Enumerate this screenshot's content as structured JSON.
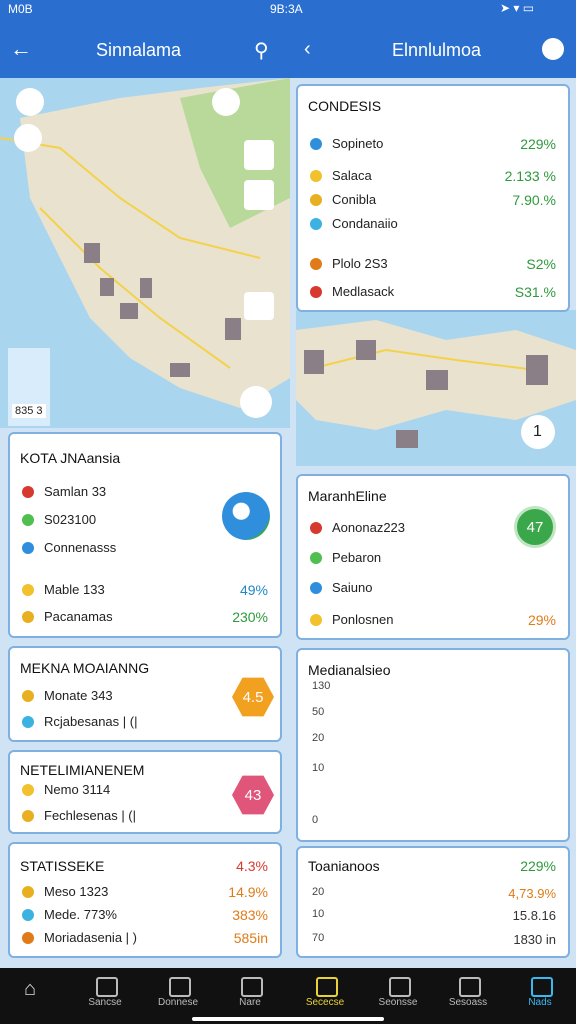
{
  "status_bar": {
    "left": "M0B",
    "center": "9B:3A"
  },
  "left_header": {
    "title": "Sinnalama"
  },
  "right_header": {
    "title": "Elnnlulmoa"
  },
  "left_map": {
    "scale_label": "835 3"
  },
  "right_map": {
    "badge": "1"
  },
  "kota_card": {
    "title": "KOTA JNAansia",
    "rows": [
      {
        "label": "Samlan 33"
      },
      {
        "label": "S023100"
      },
      {
        "label": "Connenasss"
      },
      {
        "label": "Mable 133",
        "value": "49%"
      },
      {
        "label": "Pacanamas",
        "value": "230%"
      }
    ]
  },
  "mekna_card": {
    "title": "MEKNA MOAIANNG",
    "badge": "4.5",
    "rows": [
      {
        "label": "Monate 343"
      },
      {
        "label": "Rcjabesanas | (|"
      }
    ]
  },
  "netel_card": {
    "title": "NETELIMIANENEM",
    "badge": "43",
    "rows": [
      {
        "label": "Nemo 3114"
      },
      {
        "label": "Fechlesenas | (|"
      }
    ]
  },
  "stat_card": {
    "title": "STATISSEKE",
    "title_value": "4.3%",
    "rows": [
      {
        "label": "Meso 1323",
        "value": "14.9%"
      },
      {
        "label": "Mede. 773%",
        "value": "383%"
      },
      {
        "label": "Moriadasenia | )",
        "value": "585in"
      }
    ]
  },
  "cond_card": {
    "title": "CONDESIS",
    "rows": [
      {
        "label": "Sopineto",
        "value": "229%"
      },
      {
        "label": "Salaca",
        "value": "2.133 %"
      },
      {
        "label": "Conibla",
        "value": "7.90.%"
      },
      {
        "label": "Condanaiio"
      },
      {
        "label": "Plolo 2S3",
        "value": "S2%"
      },
      {
        "label": "Medlasack",
        "value": "S31.%"
      }
    ]
  },
  "mar_card": {
    "title": "MaranhEline",
    "badge": "47",
    "rows": [
      {
        "label": "Aononaz223"
      },
      {
        "label": "Pebaron"
      },
      {
        "label": "Saiuno"
      },
      {
        "label": "Ponlosnen",
        "value": "29%"
      }
    ]
  },
  "med_card": {
    "title": "Medianalsieo",
    "ticks": [
      "130",
      "50",
      "20",
      "10",
      "0"
    ]
  },
  "toan_card": {
    "title": "Toanianoos",
    "title_value": "229%",
    "ticks": [
      "20",
      "10",
      "70"
    ],
    "values": [
      "4,73.9%",
      "15.8.16",
      "1830 in"
    ]
  },
  "nav": {
    "items": [
      "Sancse",
      "Donnese",
      "Nare",
      "Sececse",
      "Seonsse",
      "Sesoass",
      "Nads"
    ]
  }
}
